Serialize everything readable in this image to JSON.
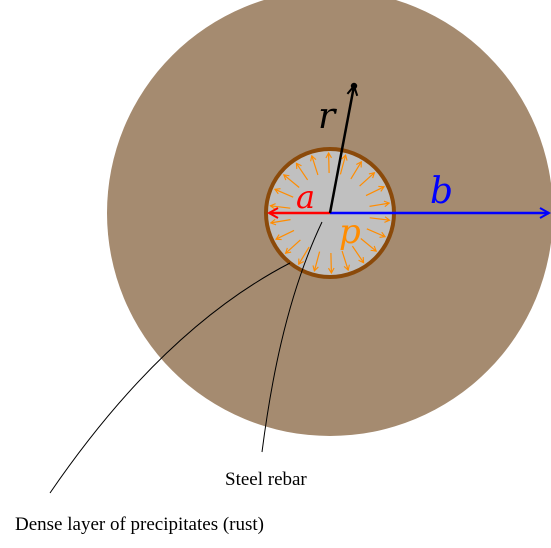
{
  "labels": {
    "r": "r",
    "a": "a",
    "b": "b",
    "p": "p",
    "steel_rebar": "Steel rebar",
    "rust_layer": "Dense layer of precipitates (rust)"
  },
  "colors": {
    "concrete": "#a58b70",
    "rebar_fill": "#c0c0c0",
    "rust_ring": "#8b4a0a",
    "pressure_arrows": "#ff8c00",
    "radius_a": "#ff0000",
    "radius_b": "#0000ff",
    "radius_r": "#000000",
    "leader_lines": "#000000"
  }
}
